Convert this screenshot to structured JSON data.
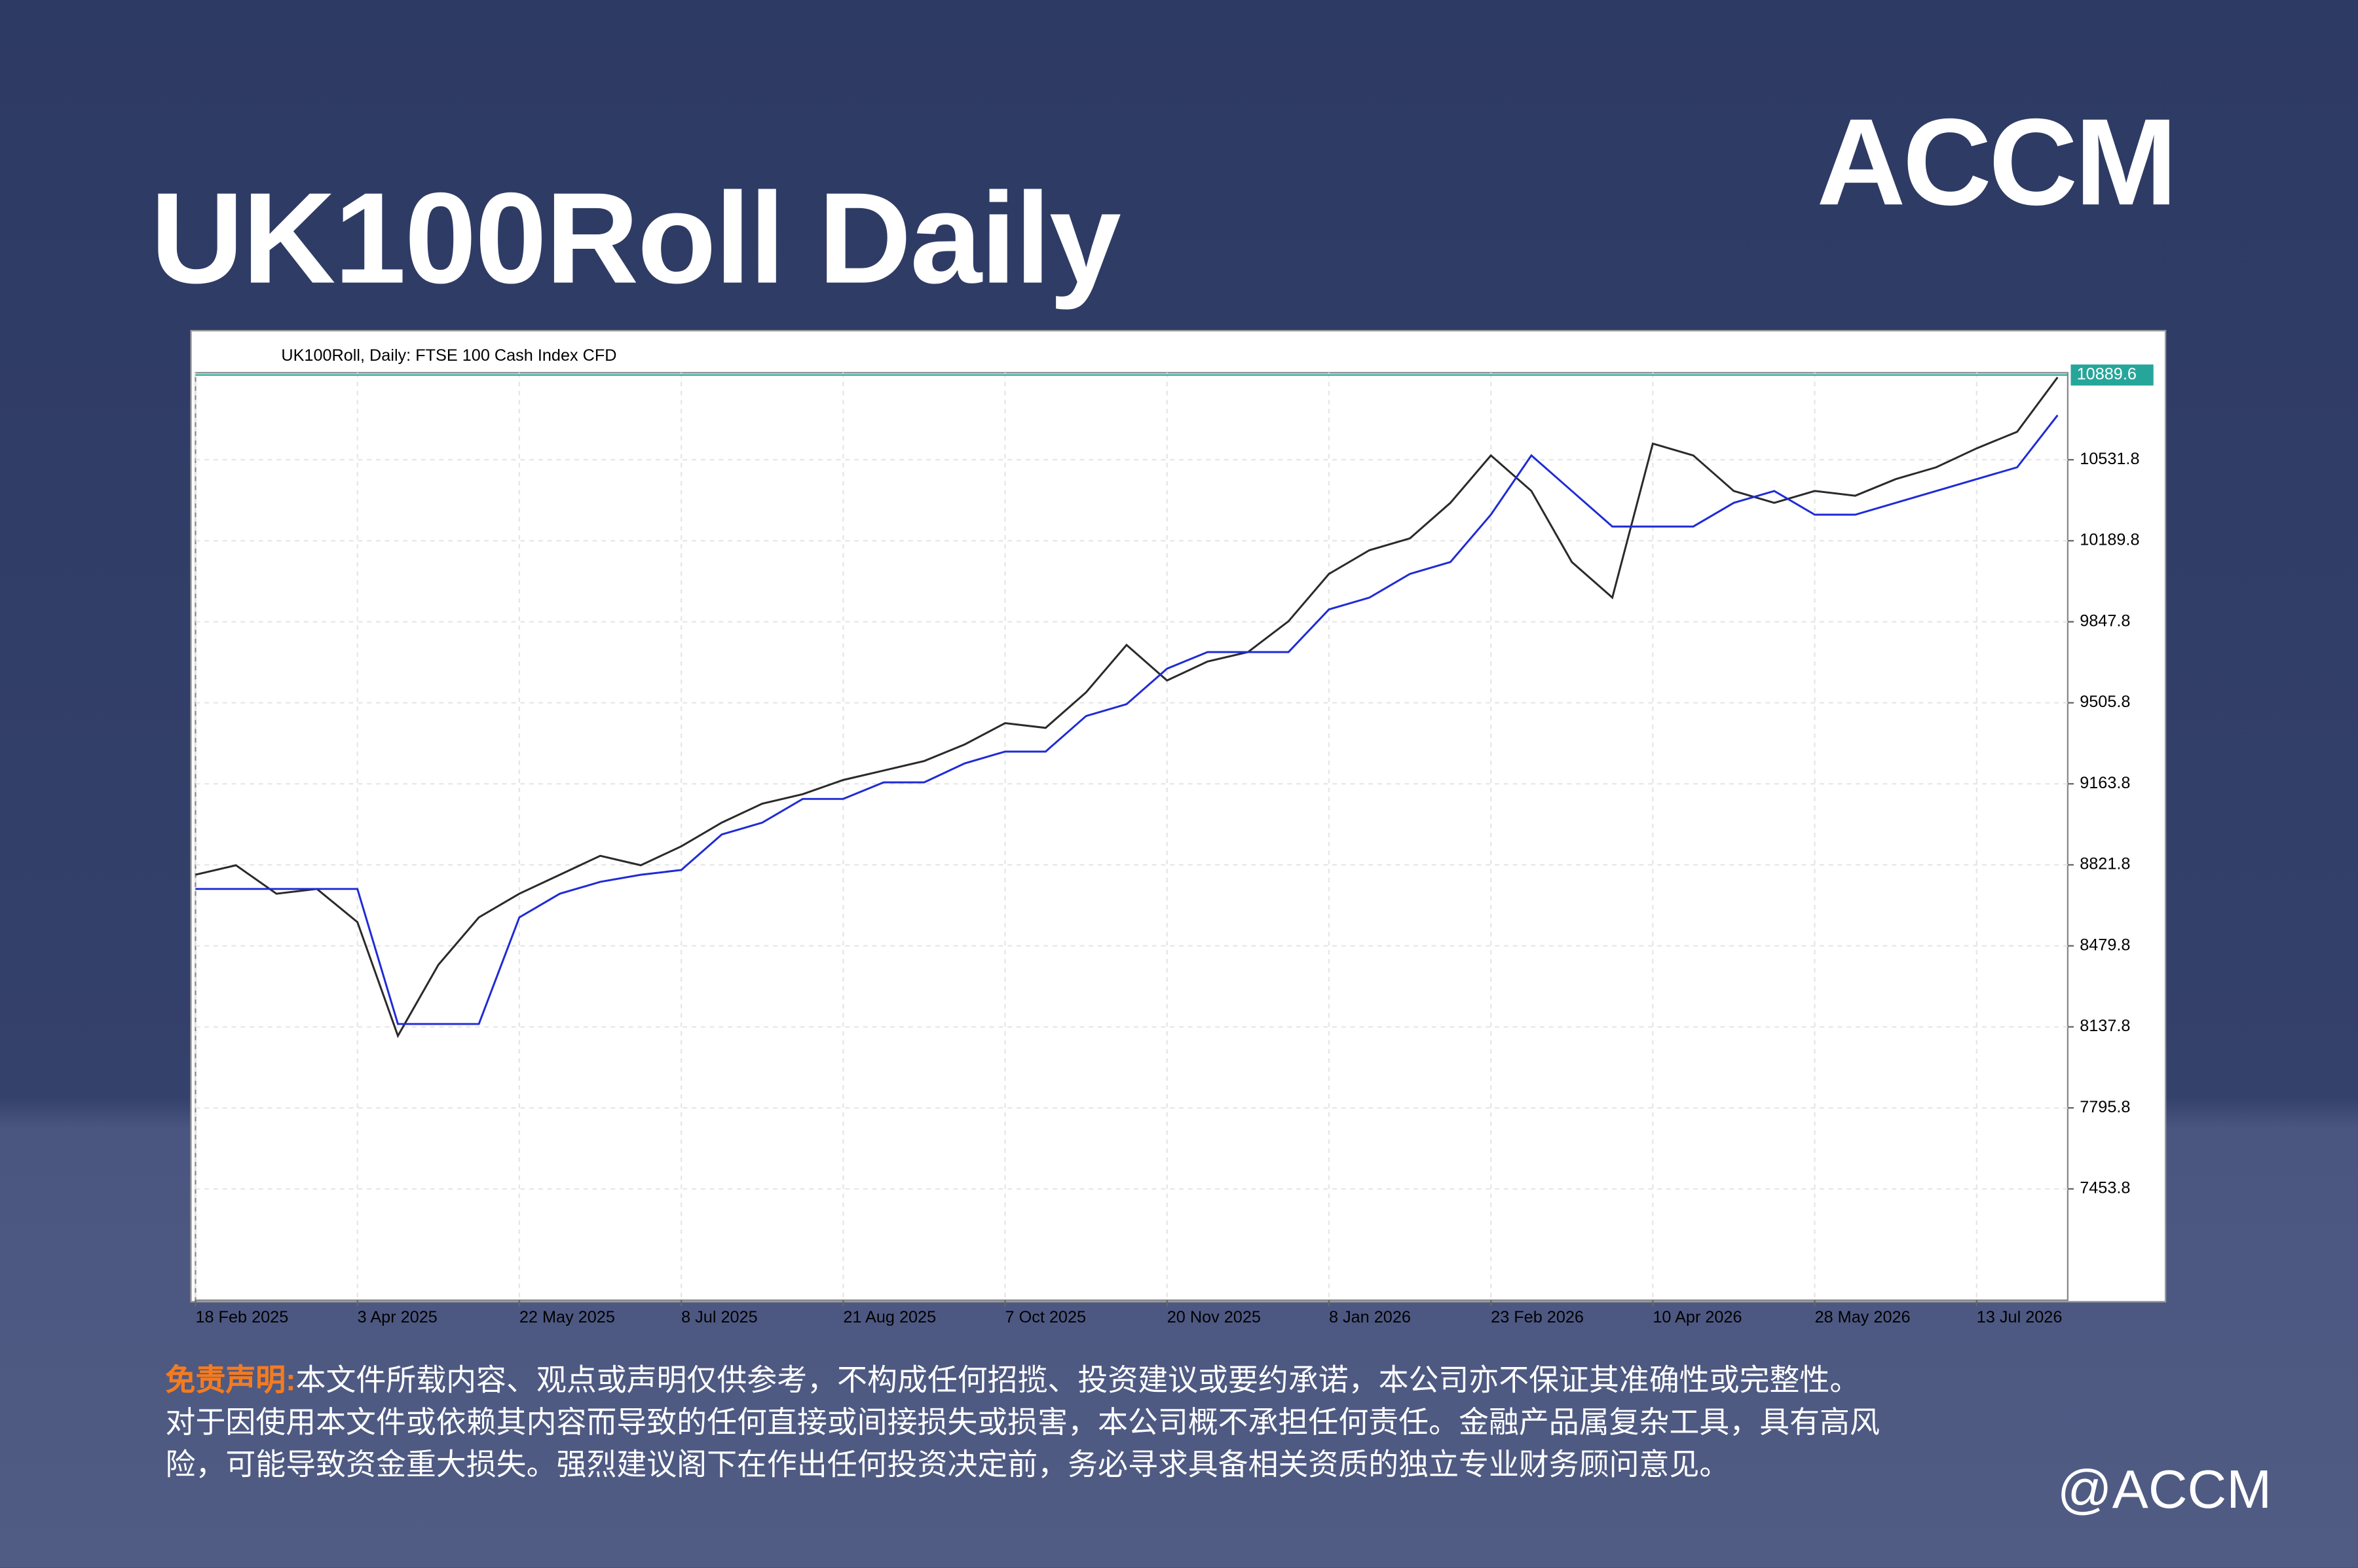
{
  "header": {
    "title": "UK100Roll Daily",
    "logo": "ACCM"
  },
  "chart_data": {
    "type": "line",
    "caption": "UK100Roll, Daily:  FTSE 100 Cash Index CFD",
    "x": [
      0,
      8,
      16,
      24,
      32,
      40,
      48,
      56,
      64,
      72,
      80,
      88,
      96,
      104,
      112,
      120,
      128,
      136,
      144,
      152,
      160,
      168,
      176,
      184,
      192,
      200,
      208,
      216,
      224,
      232,
      240,
      248,
      256,
      264,
      272,
      280,
      288,
      296,
      304,
      312,
      320,
      328,
      336,
      344,
      352,
      360,
      368
    ],
    "series": [
      {
        "color": "#2a2a2a",
        "values": [
          8780,
          8820,
          8700,
          8720,
          8580,
          8100,
          8400,
          8600,
          8700,
          8780,
          8860,
          8820,
          8900,
          9000,
          9080,
          9120,
          9180,
          9220,
          9260,
          9330,
          9420,
          9400,
          9550,
          9750,
          9600,
          9680,
          9720,
          9850,
          10050,
          10150,
          10200,
          10350,
          10550,
          10400,
          10100,
          9950,
          10600,
          10550,
          10400,
          10350,
          10400,
          10380,
          10450,
          10500,
          10580,
          10650,
          10880
        ]
      },
      {
        "color": "#1f2bd6",
        "values": [
          8720,
          8720,
          8720,
          8720,
          8720,
          8150,
          8150,
          8150,
          8600,
          8700,
          8750,
          8780,
          8800,
          8950,
          9000,
          9100,
          9100,
          9170,
          9170,
          9250,
          9300,
          9300,
          9450,
          9500,
          9650,
          9720,
          9720,
          9720,
          9900,
          9950,
          10050,
          10100,
          10300,
          10550,
          10400,
          10250,
          10250,
          10250,
          10350,
          10400,
          10300,
          10300,
          10350,
          10400,
          10450,
          10500,
          10720
        ]
      }
    ],
    "last_price": 10889.6,
    "xlim": [
      0,
      370
    ],
    "ylim": [
      6984,
      10899
    ],
    "yticks": [
      7453.8,
      7795.8,
      8137.8,
      8479.8,
      8821.8,
      9163.8,
      9505.8,
      9847.8,
      10189.8,
      10531.8
    ],
    "xticks": [
      {
        "value": 0,
        "label": "18 Feb 2025"
      },
      {
        "value": 32,
        "label": "3 Apr 2025"
      },
      {
        "value": 64,
        "label": "22 May 2025"
      },
      {
        "value": 96,
        "label": "8 Jul 2025"
      },
      {
        "value": 128,
        "label": "21 Aug 2025"
      },
      {
        "value": 160,
        "label": "7 Oct 2025"
      },
      {
        "value": 192,
        "label": "20 Nov 2025"
      },
      {
        "value": 224,
        "label": "8 Jan 2026"
      },
      {
        "value": 256,
        "label": "23 Feb 2026"
      },
      {
        "value": 288,
        "label": "10 Apr 2026"
      },
      {
        "value": 320,
        "label": "28 May 2026"
      },
      {
        "value": 352,
        "label": "13 Jul 2026"
      }
    ],
    "grid": true
  },
  "disclaimer": {
    "label": "免责声明:",
    "lines": [
      "本文件所载内容、观点或声明仅供参考，不构成任何招揽、投资建议或要约承诺，本公司亦不保证其准确性或完整性。",
      "对于因使用本文件或依赖其内容而导致的任何直接或间接损失或损害，本公司概不承担任何责任。金融产品属复杂工具，具有高风",
      "险，可能导致资金重大损失。强烈建议阁下在作出任何投资决定前，务必寻求具备相关资质的独立专业财务顾问意见。"
    ]
  },
  "footer": {
    "handle": "@ACCM"
  }
}
